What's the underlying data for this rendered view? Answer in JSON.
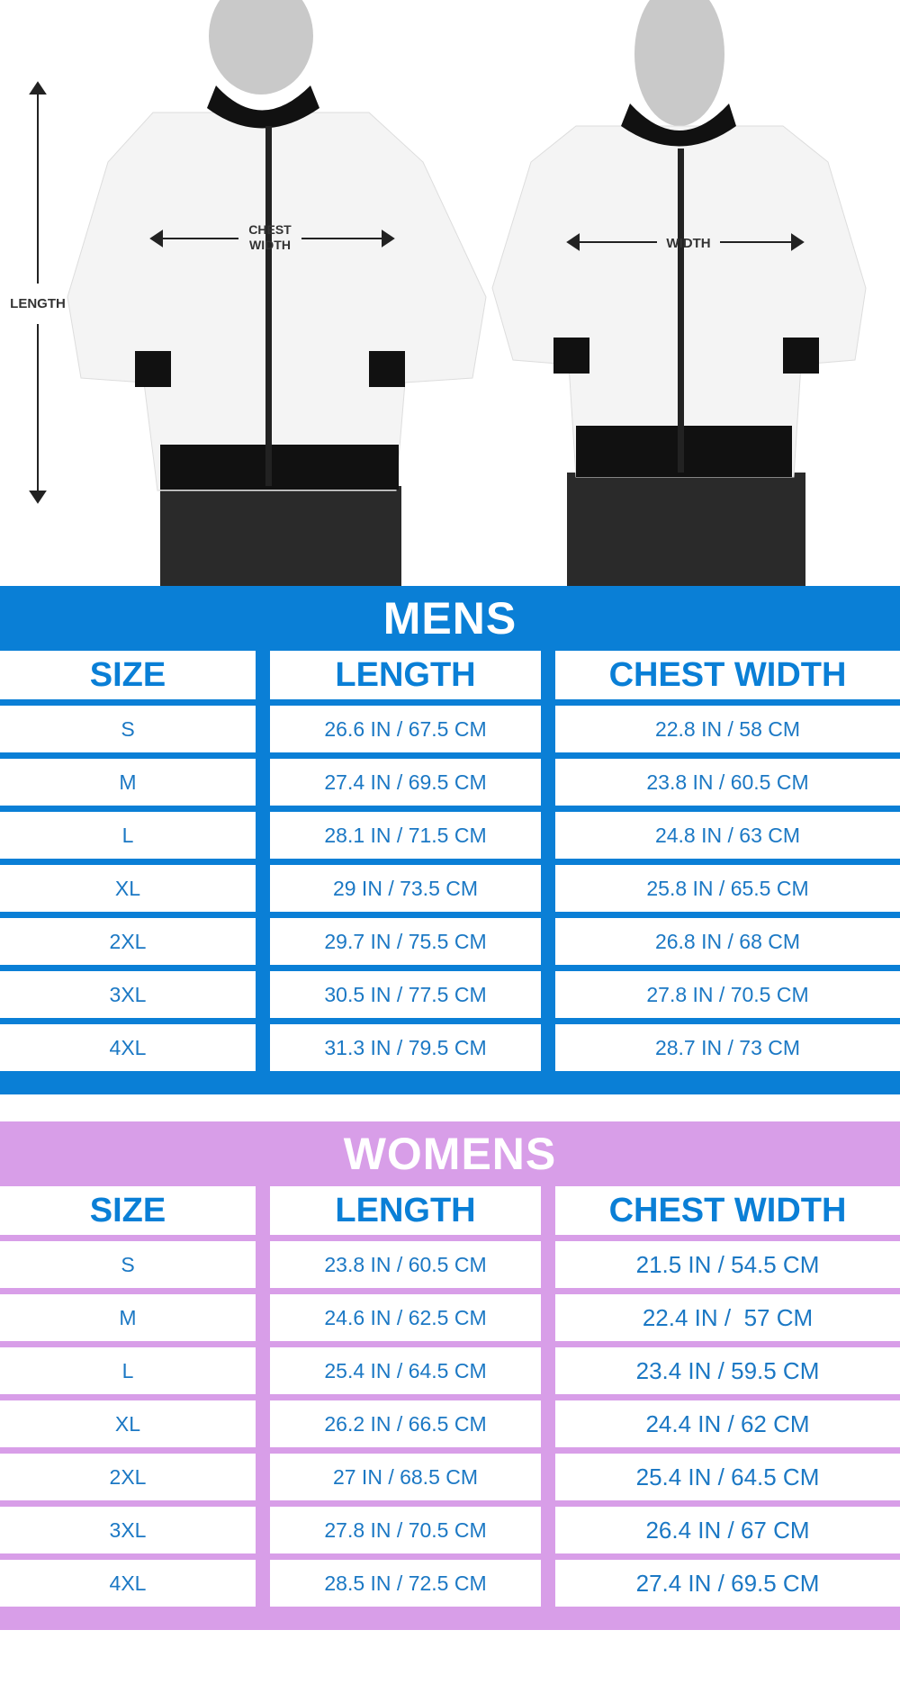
{
  "photo": {
    "length_label": "LENGTH",
    "chest_label_1": "CHEST",
    "chest_label_2": "WIDTH",
    "width_label": "WIDTH"
  },
  "colors": {
    "mens": "#0a7fd6",
    "womens": "#d89ee8",
    "text": "#1b78c4"
  },
  "mens": {
    "title": "MENS",
    "headers": [
      "SIZE",
      "LENGTH",
      "CHEST WIDTH"
    ],
    "rows": [
      [
        "S",
        "26.6 IN / 67.5 CM",
        "22.8 IN / 58 CM"
      ],
      [
        "M",
        "27.4 IN / 69.5 CM",
        "23.8 IN / 60.5 CM"
      ],
      [
        "L",
        "28.1 IN / 71.5 CM",
        "24.8 IN / 63 CM"
      ],
      [
        "XL",
        "29 IN / 73.5 CM",
        "25.8 IN / 65.5 CM"
      ],
      [
        "2XL",
        "29.7 IN / 75.5 CM",
        "26.8 IN / 68 CM"
      ],
      [
        "3XL",
        "30.5 IN / 77.5 CM",
        "27.8 IN / 70.5 CM"
      ],
      [
        "4XL",
        "31.3 IN / 79.5 CM",
        "28.7 IN / 73 CM"
      ]
    ]
  },
  "womens": {
    "title": "WOMENS",
    "headers": [
      "SIZE",
      "LENGTH",
      "CHEST WIDTH"
    ],
    "rows": [
      [
        "S",
        "23.8 IN / 60.5 CM",
        "21.5 IN / 54.5 CM"
      ],
      [
        "M",
        "24.6 IN / 62.5 CM",
        "22.4 IN /  57 CM"
      ],
      [
        "L",
        "25.4 IN / 64.5 CM",
        "23.4 IN / 59.5 CM"
      ],
      [
        "XL",
        "26.2 IN / 66.5 CM",
        "24.4 IN / 62 CM"
      ],
      [
        "2XL",
        "27 IN / 68.5 CM",
        "25.4 IN / 64.5 CM"
      ],
      [
        "3XL",
        "27.8 IN / 70.5 CM",
        "26.4 IN / 67 CM"
      ],
      [
        "4XL",
        "28.5 IN / 72.5 CM",
        "27.4 IN / 69.5 CM"
      ]
    ]
  }
}
